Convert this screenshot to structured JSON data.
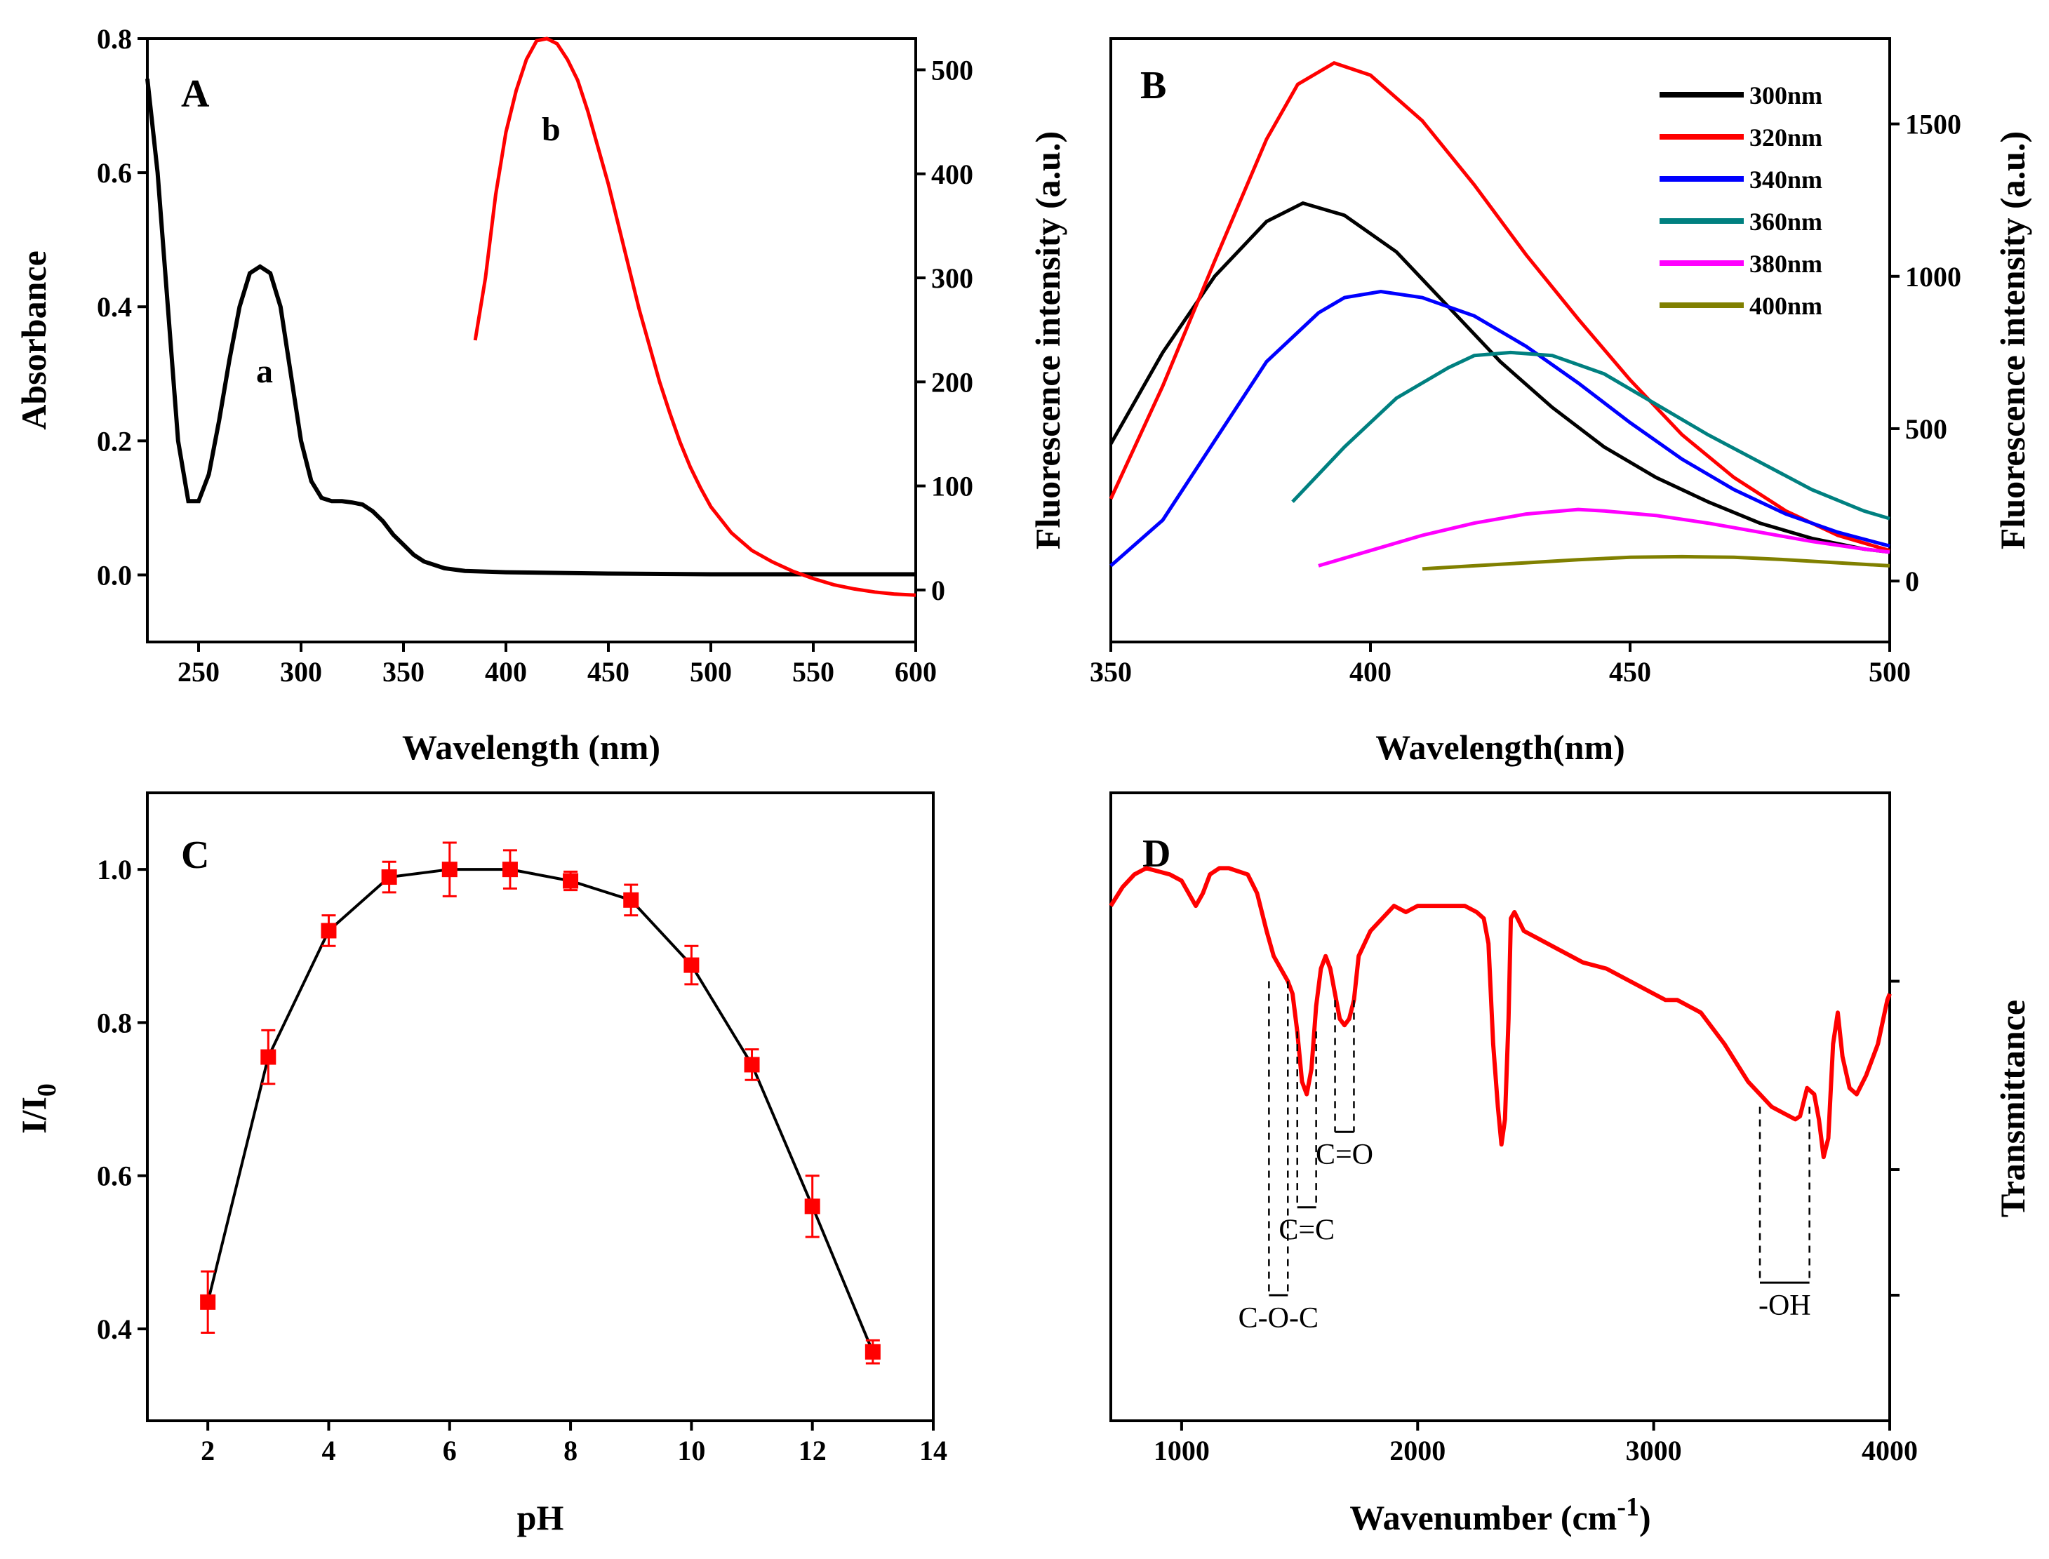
{
  "chart_data": [
    {
      "id": "A",
      "type": "line",
      "panel_label": "A",
      "xlabel": "Wavelength (nm)",
      "ylabel_left": "Absorbance",
      "ylabel_right": "Fluorescence intensity (a.u.)",
      "xlim": [
        225,
        600
      ],
      "ylim_left": [
        -0.1,
        0.8
      ],
      "ylim_right": [
        -50,
        530
      ],
      "x_ticks": [
        250,
        300,
        350,
        400,
        450,
        500,
        550,
        600
      ],
      "y_ticks_left": [
        0.0,
        0.2,
        0.4,
        0.6,
        0.8
      ],
      "y_ticks_left_labels": [
        "0.0",
        "0.2",
        "0.4",
        "0.6",
        "0.8"
      ],
      "y_ticks_right": [
        0,
        100,
        200,
        300,
        400,
        500
      ],
      "series": [
        {
          "name": "a",
          "axis": "left",
          "color": "#000000",
          "points": [
            [
              225,
              0.74
            ],
            [
              230,
              0.6
            ],
            [
              235,
              0.4
            ],
            [
              240,
              0.2
            ],
            [
              245,
              0.11
            ],
            [
              250,
              0.11
            ],
            [
              255,
              0.15
            ],
            [
              260,
              0.23
            ],
            [
              265,
              0.32
            ],
            [
              270,
              0.4
            ],
            [
              275,
              0.45
            ],
            [
              280,
              0.46
            ],
            [
              285,
              0.45
            ],
            [
              290,
              0.4
            ],
            [
              295,
              0.3
            ],
            [
              300,
              0.2
            ],
            [
              305,
              0.14
            ],
            [
              310,
              0.115
            ],
            [
              315,
              0.11
            ],
            [
              320,
              0.11
            ],
            [
              325,
              0.108
            ],
            [
              330,
              0.105
            ],
            [
              335,
              0.095
            ],
            [
              340,
              0.08
            ],
            [
              345,
              0.06
            ],
            [
              350,
              0.045
            ],
            [
              355,
              0.03
            ],
            [
              360,
              0.02
            ],
            [
              370,
              0.01
            ],
            [
              380,
              0.006
            ],
            [
              400,
              0.004
            ],
            [
              450,
              0.002
            ],
            [
              500,
              0.001
            ],
            [
              600,
              0.001
            ]
          ]
        },
        {
          "name": "b",
          "axis": "right",
          "color": "#ff0000",
          "points": [
            [
              385,
              240
            ],
            [
              390,
              300
            ],
            [
              395,
              380
            ],
            [
              400,
              440
            ],
            [
              405,
              480
            ],
            [
              410,
              510
            ],
            [
              415,
              528
            ],
            [
              420,
              530
            ],
            [
              425,
              525
            ],
            [
              430,
              510
            ],
            [
              435,
              490
            ],
            [
              440,
              460
            ],
            [
              445,
              425
            ],
            [
              450,
              390
            ],
            [
              455,
              350
            ],
            [
              460,
              310
            ],
            [
              465,
              270
            ],
            [
              470,
              235
            ],
            [
              475,
              200
            ],
            [
              480,
              170
            ],
            [
              485,
              142
            ],
            [
              490,
              118
            ],
            [
              495,
              98
            ],
            [
              500,
              80
            ],
            [
              510,
              55
            ],
            [
              520,
              38
            ],
            [
              530,
              27
            ],
            [
              540,
              18
            ],
            [
              550,
              11
            ],
            [
              560,
              5
            ],
            [
              570,
              1
            ],
            [
              580,
              -2
            ],
            [
              590,
              -4
            ],
            [
              600,
              -5
            ]
          ]
        }
      ],
      "annotations": [
        "a",
        "b"
      ]
    },
    {
      "id": "B",
      "type": "line",
      "panel_label": "B",
      "xlabel": "Wavelength(nm)",
      "ylabel_right": "Fluorescence intensity (a.u.)",
      "xlim": [
        350,
        500
      ],
      "ylim": [
        -200,
        1780
      ],
      "x_ticks": [
        350,
        400,
        450,
        500
      ],
      "y_ticks": [
        0,
        500,
        1000,
        1500
      ],
      "legend_position": "top-right",
      "series": [
        {
          "name": "300nm",
          "color": "#000000",
          "points": [
            [
              350,
              450
            ],
            [
              360,
              750
            ],
            [
              370,
              1000
            ],
            [
              380,
              1180
            ],
            [
              387,
              1240
            ],
            [
              395,
              1200
            ],
            [
              405,
              1080
            ],
            [
              415,
              900
            ],
            [
              425,
              720
            ],
            [
              435,
              570
            ],
            [
              445,
              440
            ],
            [
              455,
              340
            ],
            [
              465,
              260
            ],
            [
              475,
              190
            ],
            [
              485,
              140
            ],
            [
              495,
              105
            ],
            [
              500,
              95
            ]
          ]
        },
        {
          "name": "320nm",
          "color": "#ff0000",
          "points": [
            [
              350,
              270
            ],
            [
              360,
              640
            ],
            [
              370,
              1050
            ],
            [
              380,
              1450
            ],
            [
              386,
              1630
            ],
            [
              393,
              1700
            ],
            [
              400,
              1660
            ],
            [
              410,
              1510
            ],
            [
              420,
              1300
            ],
            [
              430,
              1070
            ],
            [
              440,
              860
            ],
            [
              450,
              660
            ],
            [
              460,
              480
            ],
            [
              470,
              340
            ],
            [
              480,
              230
            ],
            [
              490,
              150
            ],
            [
              500,
              100
            ]
          ]
        },
        {
          "name": "340nm",
          "color": "#0000ff",
          "points": [
            [
              350,
              50
            ],
            [
              360,
              200
            ],
            [
              370,
              460
            ],
            [
              380,
              720
            ],
            [
              390,
              880
            ],
            [
              395,
              930
            ],
            [
              402,
              950
            ],
            [
              410,
              930
            ],
            [
              420,
              870
            ],
            [
              430,
              770
            ],
            [
              440,
              650
            ],
            [
              450,
              520
            ],
            [
              460,
              400
            ],
            [
              470,
              300
            ],
            [
              480,
              220
            ],
            [
              490,
              160
            ],
            [
              500,
              115
            ]
          ]
        },
        {
          "name": "360nm",
          "color": "#008080",
          "points": [
            [
              385,
              260
            ],
            [
              395,
              440
            ],
            [
              405,
              600
            ],
            [
              415,
              700
            ],
            [
              420,
              740
            ],
            [
              427,
              750
            ],
            [
              435,
              740
            ],
            [
              445,
              680
            ],
            [
              455,
              580
            ],
            [
              465,
              480
            ],
            [
              475,
              390
            ],
            [
              485,
              300
            ],
            [
              495,
              230
            ],
            [
              500,
              205
            ]
          ]
        },
        {
          "name": "380nm",
          "color": "#ff00ff",
          "points": [
            [
              390,
              50
            ],
            [
              400,
              100
            ],
            [
              410,
              150
            ],
            [
              420,
              190
            ],
            [
              430,
              220
            ],
            [
              440,
              235
            ],
            [
              445,
              230
            ],
            [
              455,
              215
            ],
            [
              465,
              190
            ],
            [
              475,
              160
            ],
            [
              485,
              130
            ],
            [
              495,
              105
            ],
            [
              500,
              95
            ]
          ]
        },
        {
          "name": "400nm",
          "color": "#808000",
          "points": [
            [
              410,
              40
            ],
            [
              420,
              50
            ],
            [
              430,
              60
            ],
            [
              440,
              70
            ],
            [
              450,
              78
            ],
            [
              460,
              80
            ],
            [
              470,
              78
            ],
            [
              480,
              70
            ],
            [
              490,
              60
            ],
            [
              500,
              50
            ]
          ]
        }
      ]
    },
    {
      "id": "C",
      "type": "line",
      "panel_label": "C",
      "xlabel": "pH",
      "ylabel": "I/I0",
      "ylabel_main": "I/I",
      "ylabel_sub": "0",
      "xlim": [
        1,
        14
      ],
      "ylim": [
        0.28,
        1.1
      ],
      "x_ticks": [
        2,
        4,
        6,
        8,
        10,
        12,
        14
      ],
      "y_ticks": [
        0.4,
        0.6,
        0.8,
        1.0
      ],
      "y_tick_labels": [
        "0.4",
        "0.6",
        "0.8",
        "1.0"
      ],
      "line_color": "#000000",
      "marker_color": "#ff0000",
      "x": [
        2,
        3,
        4,
        5,
        6,
        7,
        8,
        9,
        10,
        11,
        12,
        13
      ],
      "y": [
        0.435,
        0.755,
        0.92,
        0.99,
        1.0,
        1.0,
        0.985,
        0.96,
        0.875,
        0.745,
        0.56,
        0.37
      ],
      "err": [
        0.04,
        0.035,
        0.02,
        0.02,
        0.035,
        0.025,
        0.012,
        0.02,
        0.025,
        0.02,
        0.04,
        0.015
      ]
    },
    {
      "id": "D",
      "type": "line",
      "panel_label": "D",
      "xlabel_main": "Wavenumber (cm",
      "xlabel_sup": "-1",
      "xlabel_end": ")",
      "ylabel_right": "Transmittance",
      "xlim": [
        700,
        4000
      ],
      "ylim": [
        0,
        100
      ],
      "x_ticks": [
        1000,
        2000,
        3000,
        4000
      ],
      "line_color": "#ff0000",
      "points": [
        [
          700,
          82
        ],
        [
          750,
          85
        ],
        [
          800,
          87
        ],
        [
          850,
          88
        ],
        [
          900,
          87.5
        ],
        [
          950,
          87
        ],
        [
          1000,
          86
        ],
        [
          1030,
          84
        ],
        [
          1060,
          82
        ],
        [
          1090,
          84
        ],
        [
          1120,
          87
        ],
        [
          1160,
          88
        ],
        [
          1200,
          88
        ],
        [
          1240,
          87.5
        ],
        [
          1280,
          87
        ],
        [
          1320,
          84
        ],
        [
          1360,
          78
        ],
        [
          1390,
          74
        ],
        [
          1420,
          72
        ],
        [
          1450,
          70
        ],
        [
          1470,
          68
        ],
        [
          1490,
          62
        ],
        [
          1510,
          54
        ],
        [
          1530,
          52
        ],
        [
          1550,
          56
        ],
        [
          1570,
          66
        ],
        [
          1590,
          72
        ],
        [
          1610,
          74
        ],
        [
          1630,
          72
        ],
        [
          1650,
          68
        ],
        [
          1670,
          64
        ],
        [
          1690,
          63
        ],
        [
          1710,
          64
        ],
        [
          1730,
          67
        ],
        [
          1750,
          74
        ],
        [
          1800,
          78
        ],
        [
          1850,
          80
        ],
        [
          1900,
          82
        ],
        [
          1950,
          81
        ],
        [
          2000,
          82
        ],
        [
          2050,
          82
        ],
        [
          2100,
          82
        ],
        [
          2150,
          82
        ],
        [
          2200,
          82
        ],
        [
          2250,
          81
        ],
        [
          2280,
          80
        ],
        [
          2300,
          76
        ],
        [
          2320,
          60
        ],
        [
          2340,
          50
        ],
        [
          2355,
          44
        ],
        [
          2370,
          48
        ],
        [
          2385,
          64
        ],
        [
          2395,
          80
        ],
        [
          2410,
          81
        ],
        [
          2450,
          78
        ],
        [
          2500,
          77
        ],
        [
          2600,
          75
        ],
        [
          2700,
          73
        ],
        [
          2800,
          72
        ],
        [
          2900,
          70
        ],
        [
          3000,
          68
        ],
        [
          3050,
          67
        ],
        [
          3100,
          67
        ],
        [
          3200,
          65
        ],
        [
          3300,
          60
        ],
        [
          3400,
          54
        ],
        [
          3450,
          52
        ],
        [
          3500,
          50
        ],
        [
          3550,
          49
        ],
        [
          3600,
          48
        ],
        [
          3620,
          48.5
        ],
        [
          3650,
          53
        ],
        [
          3680,
          52
        ],
        [
          3700,
          48
        ],
        [
          3720,
          42
        ],
        [
          3740,
          45
        ],
        [
          3760,
          60
        ],
        [
          3780,
          65
        ],
        [
          3800,
          58
        ],
        [
          3830,
          53
        ],
        [
          3860,
          52
        ],
        [
          3900,
          55
        ],
        [
          3950,
          60
        ],
        [
          3990,
          67
        ],
        [
          4000,
          68
        ]
      ],
      "annotations": [
        {
          "label": "C-O-C",
          "x1": 1370,
          "x2": 1450
        },
        {
          "label": "C=C",
          "x1": 1490,
          "x2": 1570
        },
        {
          "label": "C=O",
          "x1": 1650,
          "x2": 1730
        },
        {
          "label": "-OH",
          "x1": 3450,
          "x2": 3660
        }
      ]
    }
  ]
}
